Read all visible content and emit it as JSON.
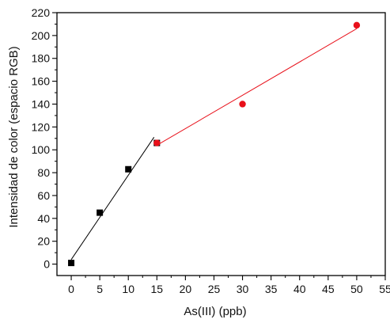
{
  "chart_data": {
    "type": "scatter",
    "title": "",
    "xlabel": "As(III) (ppb)",
    "ylabel": "Intensidad de color (espacio RGB)",
    "xlim": [
      -2.5,
      55
    ],
    "ylim": [
      -10,
      220
    ],
    "x_ticks": [
      0,
      5,
      10,
      15,
      20,
      25,
      30,
      35,
      40,
      45,
      50,
      55
    ],
    "y_ticks": [
      0,
      20,
      40,
      60,
      80,
      100,
      120,
      140,
      160,
      180,
      200,
      220
    ],
    "grid": false,
    "legend": "none",
    "series": [
      {
        "marker": "square",
        "color": "#000000",
        "x": [
          0,
          5,
          10,
          15
        ],
        "y": [
          1,
          45,
          83,
          106
        ],
        "fit_line": {
          "x": [
            0,
            14.5
          ],
          "y": [
            4,
            111
          ],
          "color": "#000000"
        }
      },
      {
        "marker": "circle",
        "color": "#e8101a",
        "x": [
          15,
          30,
          50
        ],
        "y": [
          106,
          140,
          209
        ],
        "fit_line": {
          "x": [
            15,
            50
          ],
          "y": [
            104,
            206
          ],
          "color": "#e8101a"
        }
      }
    ]
  }
}
